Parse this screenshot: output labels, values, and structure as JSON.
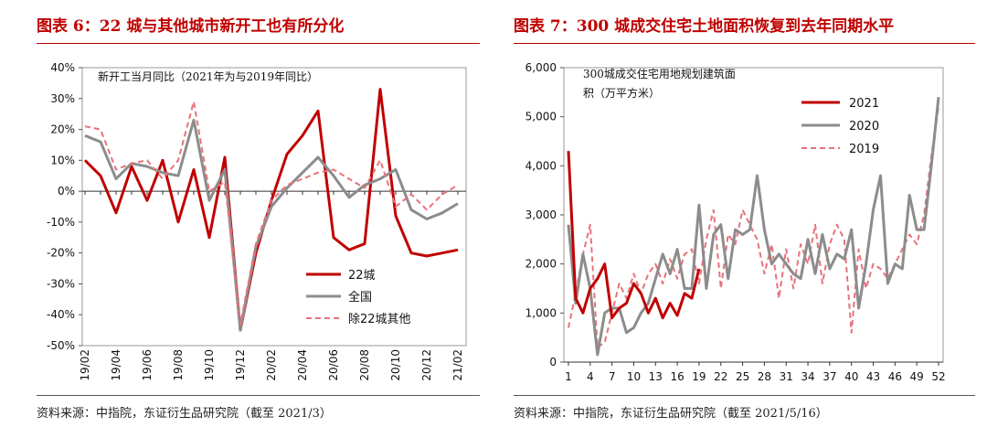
{
  "left": {
    "title": "图表 6：22 城与其他城市新开工也有所分化",
    "source": "资料来源：中指院，东证衍生品研究院（截至 2021/3）",
    "chart_data": {
      "type": "line",
      "annotation": "新开工当月同比（2021年为与2019年同比）",
      "x": [
        "19/02",
        "19/03",
        "19/04",
        "19/05",
        "19/06",
        "19/07",
        "19/08",
        "19/09",
        "19/10",
        "19/11",
        "19/12",
        "20/01",
        "20/02",
        "20/03",
        "20/04",
        "20/05",
        "20/06",
        "20/07",
        "20/08",
        "20/09",
        "20/10",
        "20/11",
        "20/12",
        "21/01",
        "21/02"
      ],
      "x_tick_labels": [
        "19/02",
        "19/04",
        "19/06",
        "19/08",
        "19/10",
        "19/12",
        "20/02",
        "20/04",
        "20/06",
        "20/08",
        "20/10",
        "20/12",
        "21/02"
      ],
      "ylim": [
        -50,
        40
      ],
      "y_ticks": [
        -50,
        -40,
        -30,
        -20,
        -10,
        0,
        10,
        20,
        30,
        40
      ],
      "y_tick_labels": [
        "-50%",
        "-40%",
        "-30%",
        "-20%",
        "-10%",
        "0%",
        "10%",
        "20%",
        "30%",
        "40%"
      ],
      "legend_position": "bottom-right",
      "series": [
        {
          "name": "22城",
          "color": "#c00000",
          "dash": "solid",
          "width": 3,
          "values": [
            10,
            5,
            -7,
            8,
            -3,
            10,
            -10,
            7,
            -15,
            11,
            -45,
            -20,
            -3,
            12,
            18,
            26,
            -15,
            -19,
            -17,
            33,
            -8,
            -20,
            -21,
            -20,
            -19
          ]
        },
        {
          "name": "全国",
          "color": "#8c8c8c",
          "dash": "solid",
          "width": 3,
          "values": [
            18,
            16,
            4,
            9,
            8,
            6,
            5,
            23,
            -3,
            7,
            -45,
            -18,
            -5,
            1,
            6,
            11,
            5,
            -2,
            2,
            4,
            7,
            -6,
            -9,
            -7,
            -4
          ]
        },
        {
          "name": "除22城其他",
          "color": "#e8727a",
          "dash": "6,4",
          "width": 2,
          "values": [
            21,
            20,
            7,
            9,
            10,
            4,
            10,
            29,
            0,
            3,
            -43,
            -17,
            -3,
            2,
            4,
            6,
            7,
            4,
            1,
            10,
            -5,
            -1,
            -6,
            -1,
            2
          ]
        }
      ]
    }
  },
  "right": {
    "title": "图表 7：300 城成交住宅土地面积恢复到去年同期水平",
    "source": "资料来源：中指院，东证衍生品研究院（截至 2021/5/16）",
    "chart_data": {
      "type": "line",
      "annotation_lines": [
        "300城成交住宅用地规划建筑面",
        "积（万平方米）"
      ],
      "xlim": [
        1,
        52
      ],
      "x_ticks": [
        1,
        4,
        7,
        10,
        13,
        16,
        19,
        22,
        25,
        28,
        31,
        34,
        37,
        40,
        43,
        46,
        49,
        52
      ],
      "x_tick_labels": [
        "1",
        "4",
        "7",
        "10",
        "13",
        "16",
        "19",
        "22",
        "25",
        "28",
        "31",
        "34",
        "37",
        "40",
        "43",
        "46",
        "49",
        "52"
      ],
      "ylim": [
        0,
        6000
      ],
      "y_ticks": [
        0,
        1000,
        2000,
        3000,
        4000,
        5000,
        6000
      ],
      "y_tick_labels": [
        "0",
        "1,000",
        "2,000",
        "3,000",
        "4,000",
        "5,000",
        "6,000"
      ],
      "legend_position": "top-left",
      "series": [
        {
          "name": "2021",
          "color": "#c00000",
          "dash": "solid",
          "width": 3,
          "x": [
            1,
            2,
            3,
            4,
            5,
            6,
            7,
            8,
            9,
            10,
            11,
            12,
            13,
            14,
            15,
            16,
            17,
            18,
            19
          ],
          "values": [
            4300,
            1300,
            1000,
            1500,
            1700,
            2000,
            900,
            1100,
            1200,
            1600,
            1400,
            1000,
            1300,
            900,
            1200,
            950,
            1400,
            1300,
            1900
          ]
        },
        {
          "name": "2020",
          "color": "#8c8c8c",
          "dash": "solid",
          "width": 3,
          "x": [
            1,
            2,
            3,
            4,
            5,
            6,
            7,
            8,
            9,
            10,
            11,
            12,
            13,
            14,
            15,
            16,
            17,
            18,
            19,
            20,
            21,
            22,
            23,
            24,
            25,
            26,
            27,
            28,
            29,
            30,
            31,
            32,
            33,
            34,
            35,
            36,
            37,
            38,
            39,
            40,
            41,
            42,
            43,
            44,
            45,
            46,
            47,
            48,
            49,
            50,
            51,
            52
          ],
          "values": [
            2800,
            1200,
            2200,
            1500,
            150,
            1000,
            1100,
            1100,
            600,
            700,
            1000,
            1200,
            1700,
            2200,
            1800,
            2300,
            1500,
            1500,
            3200,
            1500,
            2600,
            2800,
            1700,
            2700,
            2600,
            2700,
            3800,
            2700,
            2000,
            2200,
            2000,
            1800,
            1700,
            2500,
            1800,
            2600,
            1900,
            2200,
            2100,
            2700,
            1100,
            2000,
            3100,
            3800,
            1600,
            2000,
            1900,
            3400,
            2700,
            2700,
            4000,
            5400
          ]
        },
        {
          "name": "2019",
          "color": "#e8727a",
          "dash": "6,4",
          "width": 2,
          "x": [
            1,
            2,
            3,
            4,
            5,
            6,
            7,
            8,
            9,
            10,
            11,
            12,
            13,
            14,
            15,
            16,
            17,
            18,
            19,
            20,
            21,
            22,
            23,
            24,
            25,
            26,
            27,
            28,
            29,
            30,
            31,
            32,
            33,
            34,
            35,
            36,
            37,
            38,
            39,
            40,
            41,
            42,
            43,
            44,
            45,
            46,
            47,
            48,
            49,
            50,
            51,
            52
          ],
          "values": [
            700,
            1400,
            2200,
            2800,
            300,
            400,
            1000,
            1600,
            1300,
            1800,
            1400,
            1800,
            2000,
            1600,
            2100,
            1700,
            2200,
            2300,
            1600,
            2500,
            3100,
            1500,
            2600,
            2400,
            3100,
            2800,
            2500,
            1800,
            2400,
            1300,
            2300,
            1500,
            2400,
            2000,
            2800,
            1600,
            2400,
            2800,
            2500,
            600,
            2300,
            1500,
            2000,
            1900,
            1700,
            2000,
            2300,
            2600,
            2400,
            3000,
            4200,
            5200
          ]
        }
      ]
    }
  }
}
